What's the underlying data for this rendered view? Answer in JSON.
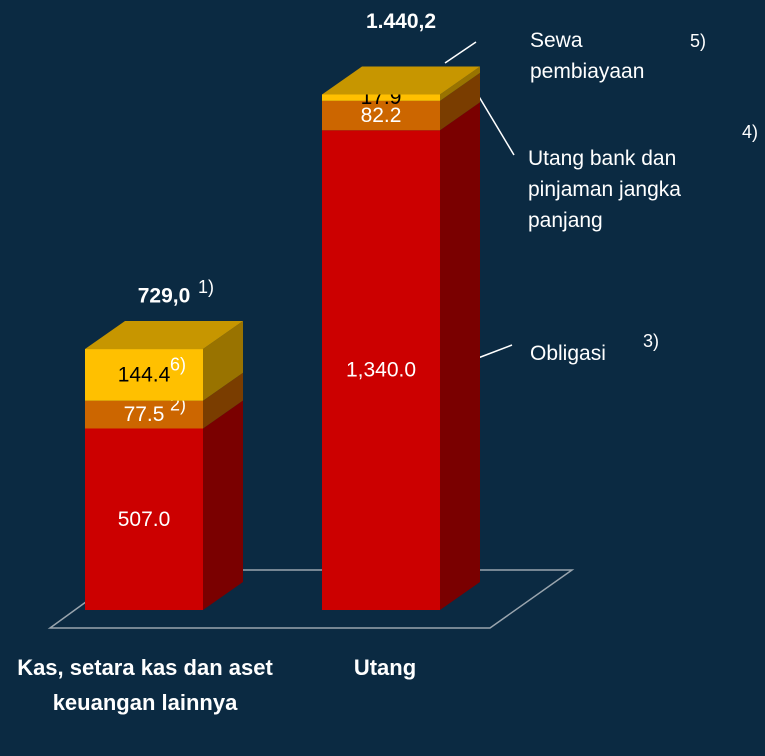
{
  "chart_data": {
    "type": "bar3d_stacked",
    "categories": [
      "Kas, setara kas dan aset keuangan lainnya",
      "Utang"
    ],
    "series": [
      {
        "name": "Obligasi",
        "name_note": "3)",
        "color": "#cc0000",
        "label_color": "#ffffff",
        "values": [
          507.0,
          1340.0
        ],
        "value_labels": [
          "507.0",
          "1,340.0"
        ]
      },
      {
        "name": "Utang bank dan pinjaman jangka panjang",
        "name_note": "4)",
        "color": "#cc6600",
        "label_color": "#ffffff",
        "values": [
          77.5,
          82.2
        ],
        "value_labels": [
          "77.5",
          "82.2"
        ],
        "value_notes": [
          "2)",
          null
        ]
      },
      {
        "name": "Sewa pembiayaan",
        "name_note": "5)",
        "color": "#ffc000",
        "label_color": "#000000",
        "values": [
          144.4,
          17.9
        ],
        "value_labels": [
          "144.4",
          "17.9"
        ],
        "value_notes": [
          "6)",
          null
        ]
      }
    ],
    "totals": [
      729.0,
      1440.2
    ],
    "total_labels": [
      "729,0",
      "1.440,2"
    ],
    "total_notes": [
      "1)",
      null
    ]
  }
}
